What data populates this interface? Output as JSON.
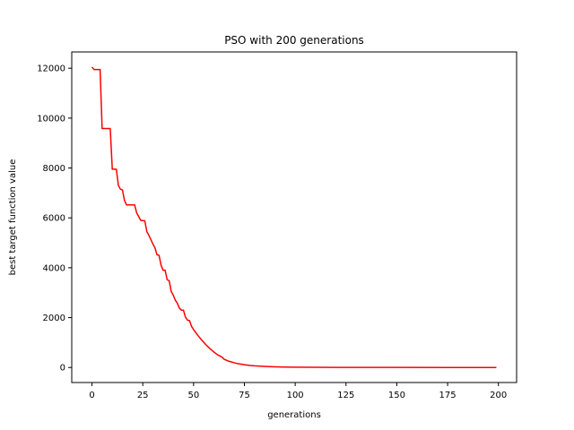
{
  "chart_data": {
    "type": "line",
    "title": "PSO with 200 generations",
    "xlabel": "generations",
    "ylabel": "best target function value",
    "xlim": [
      -9.95,
      208.95
    ],
    "ylim": [
      -602.5,
      12653
    ],
    "xticks": [
      0,
      25,
      50,
      75,
      100,
      125,
      150,
      175,
      200
    ],
    "yticks": [
      0,
      2000,
      4000,
      6000,
      8000,
      10000,
      12000
    ],
    "grid": false,
    "series": [
      {
        "color": "#ff0000",
        "x": [
          0,
          1,
          4,
          5,
          9,
          10,
          12,
          13,
          14,
          15,
          16,
          17,
          21,
          22,
          24,
          26,
          27,
          28,
          30,
          31,
          32,
          33,
          34,
          35,
          36,
          37,
          38,
          39,
          40,
          41,
          42,
          43,
          44,
          45,
          46,
          47,
          48,
          49,
          50,
          52,
          54,
          56,
          58,
          60,
          62,
          64,
          65,
          67,
          70,
          72,
          75,
          78,
          80,
          85,
          90,
          95,
          100,
          110,
          120,
          130,
          150,
          175,
          199
        ],
        "y": [
          12050,
          11950,
          11950,
          9580,
          9580,
          7950,
          7950,
          7300,
          7150,
          7120,
          6700,
          6520,
          6520,
          6200,
          5900,
          5880,
          5450,
          5300,
          4950,
          4800,
          4520,
          4500,
          4100,
          3900,
          3900,
          3520,
          3480,
          3050,
          2900,
          2700,
          2580,
          2380,
          2300,
          2300,
          2020,
          1900,
          1880,
          1650,
          1520,
          1300,
          1100,
          920,
          760,
          620,
          500,
          420,
          330,
          260,
          190,
          150,
          110,
          80,
          65,
          42,
          28,
          18,
          12,
          7,
          4,
          3,
          2,
          1,
          1
        ]
      }
    ]
  }
}
